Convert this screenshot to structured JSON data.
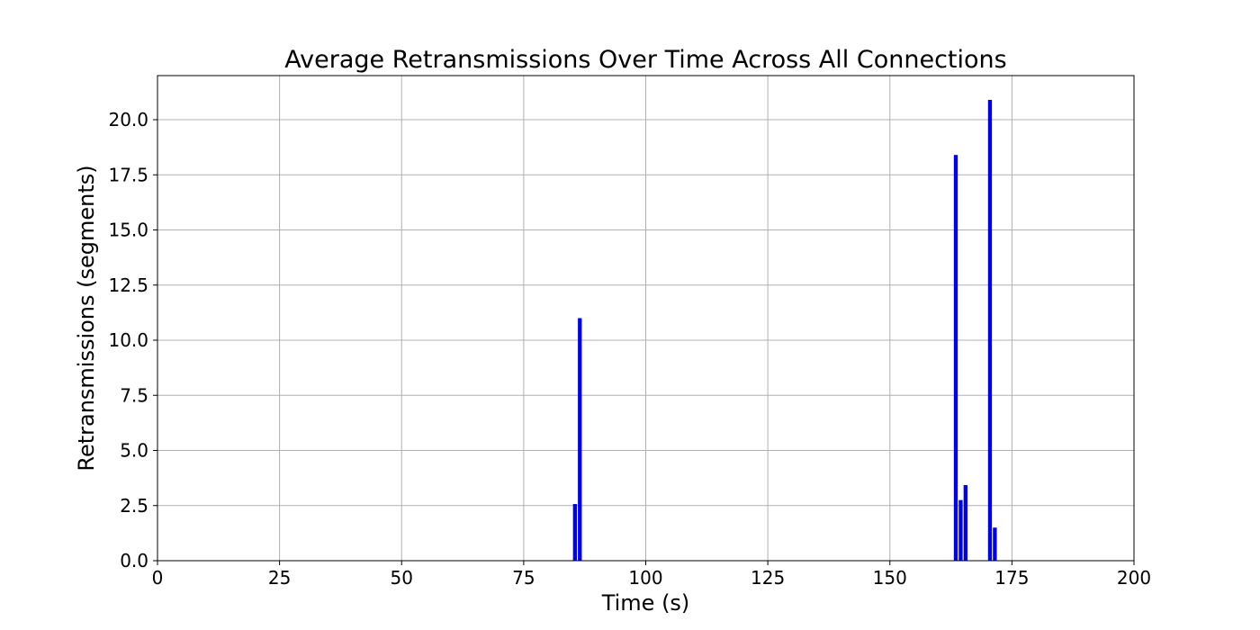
{
  "chart_data": {
    "type": "bar",
    "title": "Average Retransmissions Over Time Across All Connections",
    "xlabel": "Time (s)",
    "ylabel": "Retransmissions (segments)",
    "xlim": [
      0,
      200
    ],
    "ylim": [
      0,
      22
    ],
    "xticks": [
      0,
      25,
      50,
      75,
      100,
      125,
      150,
      175,
      200
    ],
    "xtick_labels": [
      "0",
      "25",
      "50",
      "75",
      "100",
      "125",
      "150",
      "175",
      "200"
    ],
    "yticks": [
      0,
      2.5,
      5,
      7.5,
      10,
      12.5,
      15,
      17.5,
      20
    ],
    "ytick_labels": [
      "0.0",
      "2.5",
      "5.0",
      "7.5",
      "10.0",
      "12.5",
      "15.0",
      "17.5",
      "20.0"
    ],
    "grid": true,
    "bar_color": "#0000ee",
    "bar_width": 0.8,
    "x": [
      85.5,
      86.5,
      163.5,
      164.5,
      165.5,
      170.5,
      171.5
    ],
    "values": [
      2.57,
      11.0,
      18.4,
      2.75,
      3.43,
      20.9,
      1.5
    ]
  }
}
